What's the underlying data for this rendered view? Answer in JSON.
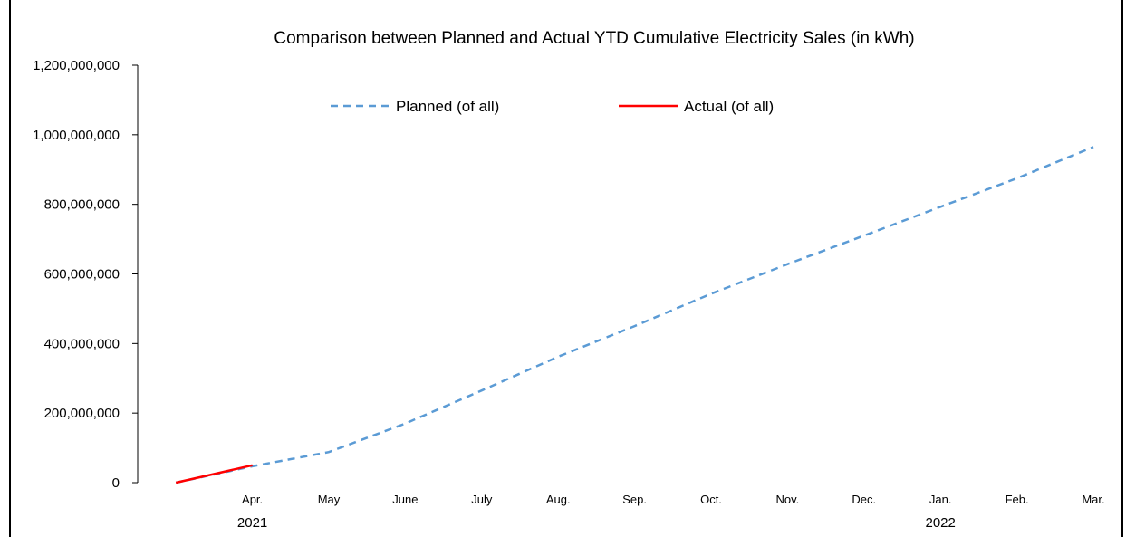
{
  "chart_data": {
    "type": "line",
    "title": "Comparison between Planned and Actual YTD Cumulative Electricity Sales (in kWh)",
    "xlabel": "",
    "ylabel": "",
    "ylim": [
      0,
      1200000000
    ],
    "y_ticks": [
      "0",
      "200,000,000",
      "400,000,000",
      "600,000,000",
      "800,000,000",
      "1,000,000,000",
      "1,200,000,000"
    ],
    "y_tick_values": [
      0,
      200000000,
      400000000,
      600000000,
      800000000,
      1000000000,
      1200000000
    ],
    "categories": [
      "",
      "Apr.",
      "May",
      "June",
      "July",
      "Aug.",
      "Sep.",
      "Oct.",
      "Nov.",
      "Dec.",
      "Jan.",
      "Feb.",
      "Mar."
    ],
    "year_labels": [
      {
        "label": "2021",
        "category_index": 1
      },
      {
        "label": "2022",
        "category_index": 10
      }
    ],
    "series": [
      {
        "name": "Planned (of all)",
        "style": "dashed",
        "color": "#5b9bd5",
        "values": [
          0,
          47000000,
          88000000,
          170000000,
          265000000,
          362000000,
          450000000,
          543000000,
          628000000,
          710000000,
          793000000,
          875000000,
          965000000
        ]
      },
      {
        "name": "Actual (of all)",
        "style": "solid",
        "color": "#ff0000",
        "values": [
          0,
          50000000,
          null,
          null,
          null,
          null,
          null,
          null,
          null,
          null,
          null,
          null,
          null
        ]
      }
    ],
    "grid": false,
    "legend_position": "top"
  }
}
